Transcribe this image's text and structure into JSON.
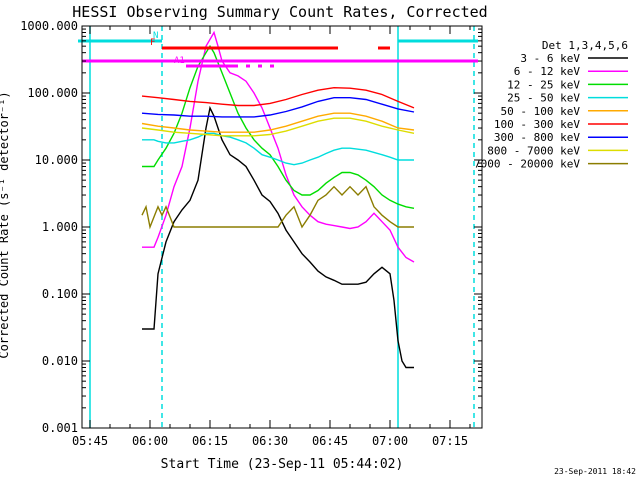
{
  "chart_data": {
    "type": "line",
    "title": "HESSI Observing Summary Count Rates, Corrected",
    "xlabel": "Start Time (23-Sep-11 05:44:02)",
    "ylabel": "Corrected Count Rate (s⁻¹ detector⁻¹)",
    "y_scale": "log",
    "xlim": [
      "05:43",
      "07:23"
    ],
    "ylim": [
      0.001,
      1000
    ],
    "x_ticks": [
      "05:45",
      "06:00",
      "06:15",
      "06:30",
      "06:45",
      "07:00",
      "07:15"
    ],
    "y_ticks": [
      "0.001",
      "0.010",
      "0.100",
      "1.000",
      "10.000",
      "100.000",
      "1000.000"
    ],
    "legend_title": "Det 1,3,4,5,6",
    "legend_position": "outside-right",
    "timestamp": "23-Sep-2011 18:42",
    "series": [
      {
        "name": "3 - 6 keV",
        "color": "#000000",
        "x": [
          "05:58",
          "05:59",
          "06:01",
          "06:02",
          "06:04",
          "06:06",
          "06:08",
          "06:10",
          "06:12",
          "06:14",
          "06:15",
          "06:16",
          "06:18",
          "06:20",
          "06:22",
          "06:24",
          "06:26",
          "06:28",
          "06:30",
          "06:32",
          "06:34",
          "06:36",
          "06:38",
          "06:40",
          "06:42",
          "06:44",
          "06:46",
          "06:48",
          "06:50",
          "06:52",
          "06:54",
          "06:56",
          "06:58",
          "07:00",
          "07:01",
          "07:02",
          "07:03",
          "07:04",
          "07:05",
          "07:06"
        ],
        "y": [
          0.03,
          0.03,
          0.03,
          0.2,
          0.6,
          1.2,
          1.8,
          2.5,
          5,
          30,
          60,
          45,
          20,
          12,
          10,
          8,
          5,
          3,
          2.4,
          1.6,
          0.9,
          0.6,
          0.4,
          0.3,
          0.22,
          0.18,
          0.16,
          0.14,
          0.14,
          0.14,
          0.15,
          0.2,
          0.25,
          0.2,
          0.08,
          0.02,
          0.01,
          0.008,
          0.008,
          0.008
        ]
      },
      {
        "name": "6 - 12 keV",
        "color": "#ff00ff",
        "x": [
          "05:58",
          "05:59",
          "06:01",
          "06:02",
          "06:04",
          "06:06",
          "06:08",
          "06:10",
          "06:12",
          "06:14",
          "06:16",
          "06:17",
          "06:18",
          "06:20",
          "06:22",
          "06:24",
          "06:26",
          "06:28",
          "06:30",
          "06:32",
          "06:34",
          "06:36",
          "06:38",
          "06:40",
          "06:42",
          "06:44",
          "06:46",
          "06:48",
          "06:50",
          "06:52",
          "06:54",
          "06:56",
          "06:58",
          "07:00",
          "07:02",
          "07:04",
          "07:06"
        ],
        "y": [
          0.5,
          0.5,
          0.5,
          0.7,
          1.5,
          4,
          8,
          30,
          150,
          500,
          800,
          500,
          300,
          200,
          180,
          150,
          100,
          60,
          30,
          15,
          6,
          3,
          2,
          1.5,
          1.2,
          1.1,
          1.05,
          1.0,
          0.95,
          1.0,
          1.2,
          1.6,
          1.2,
          0.9,
          0.5,
          0.35,
          0.3
        ]
      },
      {
        "name": "12 - 25 keV",
        "color": "#00dd00",
        "x": [
          "05:58",
          "05:59",
          "06:01",
          "06:02",
          "06:04",
          "06:06",
          "06:08",
          "06:10",
          "06:12",
          "06:14",
          "06:15",
          "06:16",
          "06:18",
          "06:20",
          "06:22",
          "06:24",
          "06:26",
          "06:28",
          "06:30",
          "06:32",
          "06:34",
          "06:36",
          "06:38",
          "06:40",
          "06:42",
          "06:44",
          "06:46",
          "06:48",
          "06:50",
          "06:52",
          "06:54",
          "06:56",
          "06:58",
          "07:00",
          "07:02",
          "07:04",
          "07:06"
        ],
        "y": [
          8,
          8,
          8,
          10,
          15,
          25,
          50,
          120,
          250,
          400,
          500,
          400,
          200,
          100,
          50,
          30,
          20,
          15,
          12,
          8,
          5,
          3.5,
          3,
          3,
          3.5,
          4.5,
          5.5,
          6.5,
          6.5,
          6,
          5,
          4,
          3,
          2.5,
          2.2,
          2,
          1.9
        ]
      },
      {
        "name": "25 - 50 keV",
        "color": "#00dddd",
        "x": [
          "05:58",
          "05:59",
          "06:01",
          "06:02",
          "06:04",
          "06:06",
          "06:08",
          "06:10",
          "06:12",
          "06:14",
          "06:16",
          "06:18",
          "06:20",
          "06:22",
          "06:24",
          "06:26",
          "06:28",
          "06:30",
          "06:32",
          "06:34",
          "06:36",
          "06:38",
          "06:40",
          "06:42",
          "06:44",
          "06:46",
          "06:48",
          "06:50",
          "06:52",
          "06:54",
          "06:56",
          "06:58",
          "07:00",
          "07:02",
          "07:04",
          "07:06"
        ],
        "y": [
          20,
          20,
          20,
          19,
          18,
          18,
          19,
          20,
          22,
          25,
          25,
          23,
          22,
          20,
          18,
          15,
          12,
          11,
          10,
          9,
          8.5,
          9,
          10,
          11,
          12.5,
          14,
          15,
          15,
          14.5,
          14,
          13,
          12,
          11,
          10,
          10,
          10
        ]
      },
      {
        "name": "50 - 100 keV",
        "color": "#ffaa00",
        "x": [
          "05:58",
          "06:02",
          "06:06",
          "06:10",
          "06:14",
          "06:18",
          "06:22",
          "06:26",
          "06:30",
          "06:34",
          "06:38",
          "06:42",
          "06:46",
          "06:50",
          "06:54",
          "06:58",
          "07:02",
          "07:06"
        ],
        "y": [
          35,
          32,
          30,
          28,
          27,
          26,
          26,
          26,
          28,
          32,
          38,
          45,
          50,
          50,
          45,
          38,
          30,
          28
        ]
      },
      {
        "name": "100 - 300 keV",
        "color": "#ff0000",
        "x": [
          "05:58",
          "06:02",
          "06:06",
          "06:10",
          "06:14",
          "06:18",
          "06:22",
          "06:26",
          "06:30",
          "06:34",
          "06:38",
          "06:42",
          "06:46",
          "06:50",
          "06:54",
          "06:58",
          "07:02",
          "07:06"
        ],
        "y": [
          90,
          85,
          80,
          75,
          72,
          68,
          65,
          65,
          70,
          80,
          95,
          110,
          120,
          118,
          110,
          95,
          75,
          60
        ]
      },
      {
        "name": "300 - 800 keV",
        "color": "#0000ff",
        "x": [
          "05:58",
          "06:02",
          "06:06",
          "06:10",
          "06:14",
          "06:18",
          "06:22",
          "06:26",
          "06:30",
          "06:34",
          "06:38",
          "06:42",
          "06:46",
          "06:50",
          "06:54",
          "06:58",
          "07:02",
          "07:06"
        ],
        "y": [
          50,
          48,
          47,
          45,
          45,
          44,
          44,
          44,
          47,
          53,
          62,
          75,
          85,
          85,
          80,
          68,
          58,
          52
        ]
      },
      {
        "name": "800 - 7000 keV",
        "color": "#dddd00",
        "x": [
          "05:58",
          "06:02",
          "06:06",
          "06:10",
          "06:14",
          "06:18",
          "06:22",
          "06:26",
          "06:30",
          "06:34",
          "06:38",
          "06:42",
          "06:46",
          "06:50",
          "06:54",
          "06:58",
          "07:02",
          "07:06"
        ],
        "y": [
          30,
          28,
          26,
          25,
          24,
          23,
          23,
          23,
          24,
          27,
          32,
          38,
          42,
          42,
          38,
          32,
          28,
          25
        ]
      },
      {
        "name": "7000 - 20000 keV",
        "color": "#8b7d00",
        "x": [
          "05:58",
          "05:59",
          "06:00",
          "06:02",
          "06:03",
          "06:04",
          "06:06",
          "06:08",
          "06:10",
          "06:12",
          "06:14",
          "06:16",
          "06:18",
          "06:20",
          "06:22",
          "06:24",
          "06:26",
          "06:28",
          "06:30",
          "06:32",
          "06:34",
          "06:36",
          "06:38",
          "06:40",
          "06:42",
          "06:44",
          "06:46",
          "06:48",
          "06:50",
          "06:52",
          "06:54",
          "06:56",
          "06:58",
          "07:00",
          "07:02",
          "07:04",
          "07:06"
        ],
        "y": [
          1.5,
          2,
          1,
          2,
          1.5,
          2,
          1,
          1,
          1,
          1,
          1,
          1,
          1,
          1,
          1,
          1,
          1,
          1,
          1,
          1,
          1.5,
          2,
          1,
          1.5,
          2.5,
          3,
          4,
          3,
          4,
          3,
          4,
          2,
          1.5,
          1.2,
          1,
          1,
          1
        ]
      }
    ],
    "status_bars": [
      {
        "label": "N",
        "color": "#00dddd",
        "segments": [
          [
            "05:42",
            "06:03"
          ],
          [
            "07:02",
            "07:22"
          ]
        ]
      },
      {
        "label": "F",
        "color": "#ff0000",
        "segments": [
          [
            "06:03",
            "06:47"
          ],
          [
            "06:57",
            "07:00"
          ]
        ]
      },
      {
        "label": "A1",
        "color": "#ff00ff",
        "segments": [
          [
            "06:09",
            "06:22"
          ],
          [
            "06:24",
            "06:25"
          ],
          [
            "06:27",
            "06:28"
          ],
          [
            "06:30",
            "06:31"
          ]
        ]
      }
    ],
    "attenuator_bar": {
      "color": "#ff00ff",
      "y": 300,
      "from": "05:43",
      "to": "07:22"
    },
    "vertical_markers": [
      {
        "time": "06:03",
        "color": "#00dddd",
        "style": "dashed"
      },
      {
        "time": "07:21",
        "color": "#00dddd",
        "style": "dashed"
      },
      {
        "time": "07:02",
        "color": "#00dddd",
        "style": "solid"
      },
      {
        "time": "05:45",
        "color": "#00dddd",
        "style": "solid"
      }
    ]
  }
}
